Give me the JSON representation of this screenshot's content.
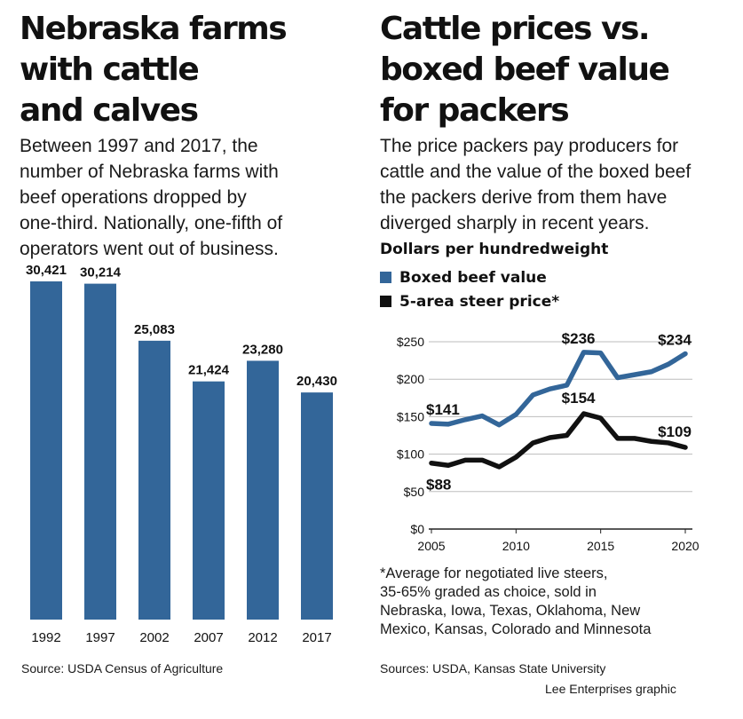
{
  "left": {
    "title_lines": [
      "Nebraska farms",
      "with cattle",
      "and calves"
    ],
    "dek": "Between 1997 and 2017, the\nnumber of Nebraska farms with\nbeef operations dropped by\none-third. Nationally, one-fifth of\noperators went out of business.",
    "source": "Source: USDA Census of Agriculture"
  },
  "right": {
    "title_lines": [
      "Cattle prices vs.",
      "boxed beef value",
      "for packers"
    ],
    "dek": "The price packers pay producers for\ncattle and the value of the boxed beef\nthe packers derive from them have\ndiverged sharply in recent years.",
    "units": "Dollars per hundredweight",
    "legend": [
      {
        "label": "Boxed beef value",
        "color": "#336699"
      },
      {
        "label": "5-area steer price*",
        "color": "#111111"
      }
    ],
    "footnote": "*Average for negotiated live steers,\n35-65% graded as choice, sold in\nNebraska, Iowa, Texas, Oklahoma, New\nMexico, Kansas, Colorado and Minnesota",
    "source": "Sources: USDA, Kansas State University"
  },
  "credit": "Lee Enterprises graphic",
  "chart_data": [
    {
      "type": "bar",
      "title": "Nebraska farms with cattle and calves",
      "categories": [
        "1992",
        "1997",
        "2002",
        "2007",
        "2012",
        "2017"
      ],
      "values": [
        30421,
        30214,
        25083,
        21424,
        23280,
        20430
      ],
      "value_labels": [
        "30,421",
        "30,214",
        "25,083",
        "21,424",
        "23,280",
        "20,430"
      ],
      "ylim": [
        0,
        30421
      ],
      "color": "#336699",
      "grid": false
    },
    {
      "type": "line",
      "title": "Cattle prices vs. boxed beef value for packers",
      "ylabel": "Dollars per hundredweight",
      "x": [
        2005,
        2006,
        2007,
        2008,
        2009,
        2010,
        2011,
        2012,
        2013,
        2014,
        2015,
        2016,
        2017,
        2018,
        2019,
        2020
      ],
      "series": [
        {
          "name": "Boxed beef value",
          "color": "#336699",
          "values": [
            141,
            140,
            146,
            151,
            139,
            153,
            179,
            187,
            192,
            236,
            235,
            202,
            206,
            210,
            220,
            234
          ]
        },
        {
          "name": "5-area steer price*",
          "color": "#111111",
          "values": [
            88,
            85,
            92,
            92,
            83,
            96,
            115,
            122,
            125,
            154,
            148,
            121,
            121,
            117,
            115,
            109
          ]
        }
      ],
      "annotations": [
        {
          "x": 2005,
          "series": 0,
          "text": "$141"
        },
        {
          "x": 2014,
          "series": 0,
          "text": "$236"
        },
        {
          "x": 2020,
          "series": 0,
          "text": "$234"
        },
        {
          "x": 2005,
          "series": 1,
          "text": "$88"
        },
        {
          "x": 2014,
          "series": 1,
          "text": "$154"
        },
        {
          "x": 2020,
          "series": 1,
          "text": "$109"
        }
      ],
      "xlim": [
        2005,
        2020
      ],
      "ylim": [
        0,
        250
      ],
      "yticks": [
        0,
        50,
        100,
        150,
        200,
        250
      ],
      "ytick_labels": [
        "$0",
        "$50",
        "$100",
        "$150",
        "$200",
        "$250"
      ],
      "xticks": [
        2005,
        2010,
        2015,
        2020
      ],
      "grid": true,
      "legend_position": "top-left"
    }
  ]
}
